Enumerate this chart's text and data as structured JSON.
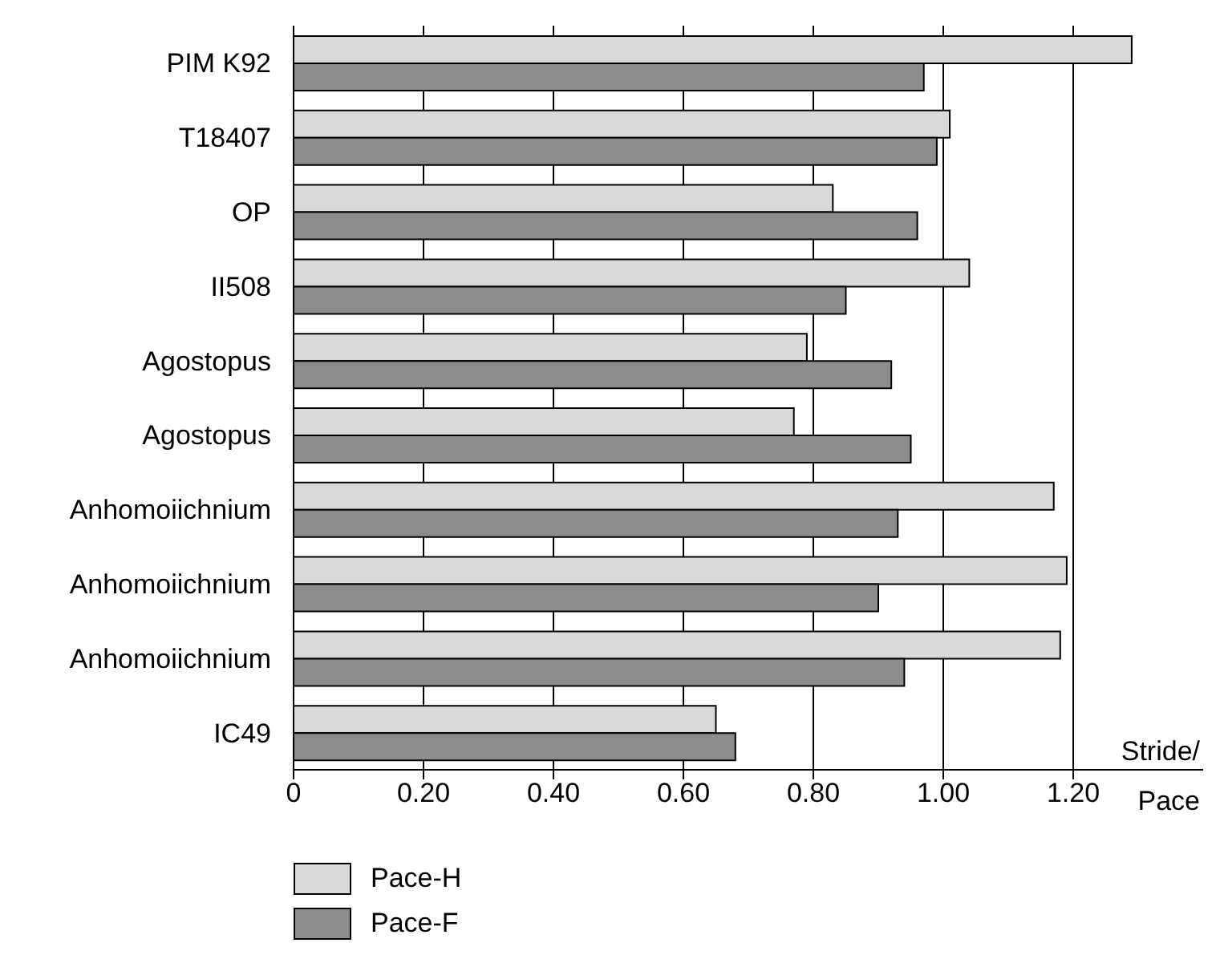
{
  "chart_data": {
    "type": "bar",
    "orientation": "horizontal",
    "xlabel": "Stride/ Pace",
    "categories": [
      "PIM K92",
      "T18407",
      "OP",
      "II508",
      "Agostopus",
      "Agostopus",
      "Anhomoiichnium",
      "Anhomoiichnium",
      "Anhomoiichnium",
      "IC49"
    ],
    "series": [
      {
        "name": "Pace-H",
        "color": "#d9d9d9",
        "values": [
          1.29,
          1.01,
          0.83,
          1.04,
          0.79,
          0.77,
          1.17,
          1.19,
          1.18,
          0.65
        ]
      },
      {
        "name": "Pace-F",
        "color": "#8c8c8c",
        "values": [
          0.97,
          0.99,
          0.96,
          0.85,
          0.92,
          0.95,
          0.93,
          0.9,
          0.94,
          0.68
        ]
      }
    ],
    "xlim": [
      0,
      1.4
    ],
    "xticks": [
      0,
      {
        "value": 0.2,
        "label": "0.20"
      },
      {
        "value": 0.4,
        "label": "0.40"
      },
      {
        "value": 0.6,
        "label": "0.60"
      },
      {
        "value": 0.8,
        "label": "0.80"
      },
      {
        "value": 1,
        "label": "1.00"
      },
      {
        "value": 1.2,
        "label": "1.20"
      }
    ],
    "grid": "x",
    "legend": "bottom left"
  }
}
